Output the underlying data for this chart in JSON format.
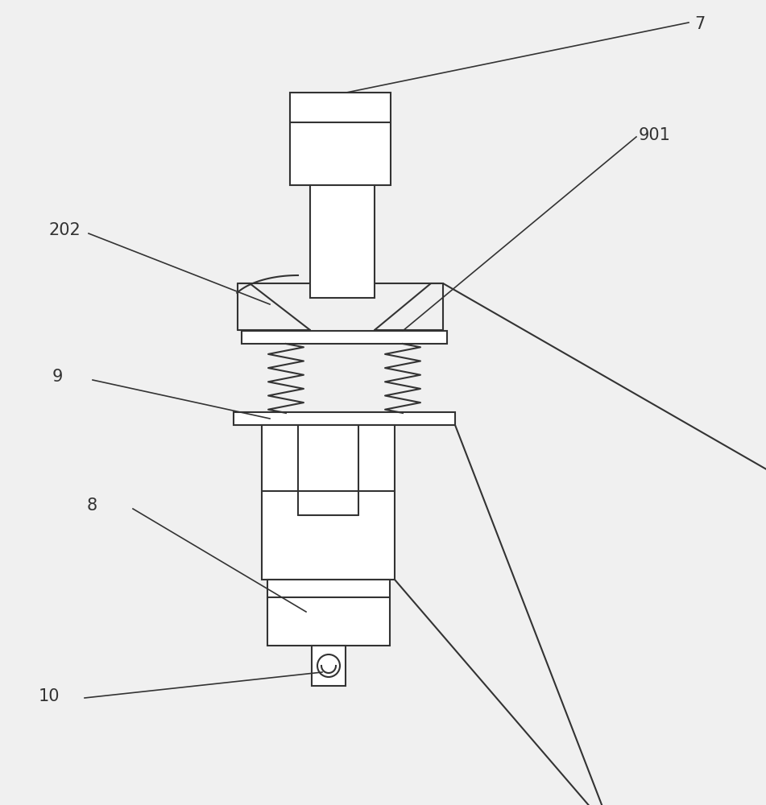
{
  "bg_color": "#f0f0f0",
  "line_color": "#333333",
  "line_width": 1.5,
  "label_fontsize": 15,
  "label_color": "#333333"
}
